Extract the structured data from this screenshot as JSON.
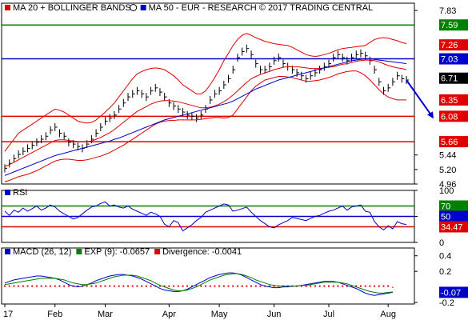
{
  "chart_data": [
    {
      "type": "line",
      "panel": "price",
      "title": "",
      "legend": [
        {
          "label": "MA 20 + BOLLINGER BANDS",
          "color": "#e00000",
          "icon": "info-icon"
        },
        {
          "label": "MA 50 - EUR - RESEARCH © 2017 TRADING CENTRAL",
          "color": "#0000cc"
        }
      ],
      "ylim": [
        4.96,
        7.95
      ],
      "yticks": [
        "7.83",
        "5.44",
        "5.20",
        "4.96"
      ],
      "levels": [
        {
          "value": 7.59,
          "label": "7.59",
          "color": "#008000"
        },
        {
          "value": 7.26,
          "label": "7.26",
          "color": "#e00000"
        },
        {
          "value": 7.03,
          "label": "7.03",
          "color": "#0000cc"
        },
        {
          "value": 6.71,
          "label": "6.71",
          "color": "#000000"
        },
        {
          "value": 6.35,
          "label": "6.35",
          "color": "#e00000"
        },
        {
          "value": 6.08,
          "label": "6.08",
          "color": "#e00000"
        },
        {
          "value": 5.66,
          "label": "5.66",
          "color": "#e00000"
        }
      ],
      "hlines": [
        {
          "value": 7.59,
          "color": "#008000"
        },
        {
          "value": 7.03,
          "color": "#0000cc"
        },
        {
          "value": 6.08,
          "color": "#e00000"
        },
        {
          "value": 5.66,
          "color": "#e00000"
        }
      ],
      "series": [
        {
          "key": "price",
          "color": "#000000",
          "values": [
            5.22,
            5.3,
            5.38,
            5.45,
            5.5,
            5.55,
            5.6,
            5.65,
            5.7,
            5.75,
            5.85,
            5.9,
            5.8,
            5.75,
            5.65,
            5.62,
            5.58,
            5.55,
            5.62,
            5.7,
            5.8,
            5.9,
            6,
            6.05,
            6.1,
            6.2,
            6.3,
            6.4,
            6.45,
            6.5,
            6.45,
            6.4,
            6.5,
            6.55,
            6.48,
            6.4,
            6.3,
            6.25,
            6.2,
            6.15,
            6.1,
            6.08,
            6.05,
            6.1,
            6.2,
            6.35,
            6.45,
            6.5,
            6.6,
            6.7,
            6.85,
            7.05,
            7.15,
            7.2,
            7.1,
            6.95,
            6.85,
            6.85,
            6.9,
            7,
            7.05,
            6.95,
            6.9,
            6.85,
            6.8,
            6.75,
            6.7,
            6.75,
            6.8,
            6.85,
            6.9,
            6.95,
            7.05,
            7.1,
            7.05,
            7,
            7.05,
            7.1,
            7.12,
            7.08,
            7,
            6.85,
            6.65,
            6.5,
            6.55,
            6.65,
            6.75,
            6.7,
            6.68
          ]
        },
        {
          "key": "ma20",
          "color": "#e00000",
          "values": [
            5.25,
            5.28,
            5.32,
            5.36,
            5.4,
            5.44,
            5.48,
            5.52,
            5.56,
            5.6,
            5.64,
            5.68,
            5.69,
            5.69,
            5.68,
            5.67,
            5.66,
            5.66,
            5.66,
            5.67,
            5.7,
            5.73,
            5.77,
            5.81,
            5.86,
            5.92,
            5.98,
            6.04,
            6.1,
            6.16,
            6.2,
            6.24,
            6.28,
            6.31,
            6.33,
            6.34,
            6.34,
            6.33,
            6.32,
            6.3,
            6.28,
            6.26,
            6.24,
            6.22,
            6.22,
            6.23,
            6.25,
            6.28,
            6.32,
            6.37,
            6.43,
            6.5,
            6.57,
            6.64,
            6.7,
            6.74,
            6.77,
            6.8,
            6.82,
            6.85,
            6.87,
            6.89,
            6.9,
            6.9,
            6.9,
            6.89,
            6.88,
            6.87,
            6.87,
            6.87,
            6.88,
            6.89,
            6.9,
            6.92,
            6.94,
            6.95,
            6.97,
            6.99,
            7,
            7.01,
            7.01,
            7,
            6.98,
            6.95,
            6.92,
            6.9,
            6.88,
            6.87,
            6.85
          ]
        },
        {
          "key": "bb_upper",
          "color": "#e00000",
          "values": [
            5.5,
            5.6,
            5.7,
            5.8,
            5.85,
            5.9,
            5.95,
            6,
            6.05,
            6.1,
            6.15,
            6.2,
            6.18,
            6.15,
            6.1,
            6.05,
            6,
            5.98,
            5.97,
            5.98,
            6.02,
            6.08,
            6.15,
            6.22,
            6.3,
            6.4,
            6.5,
            6.6,
            6.7,
            6.78,
            6.82,
            6.85,
            6.87,
            6.88,
            6.87,
            6.85,
            6.8,
            6.75,
            6.68,
            6.6,
            6.55,
            6.5,
            6.45,
            6.45,
            6.5,
            6.6,
            6.72,
            6.85,
            7,
            7.12,
            7.25,
            7.35,
            7.42,
            7.45,
            7.42,
            7.38,
            7.35,
            7.32,
            7.3,
            7.28,
            7.27,
            7.26,
            7.25,
            7.22,
            7.18,
            7.14,
            7.1,
            7.08,
            7.07,
            7.08,
            7.1,
            7.12,
            7.15,
            7.18,
            7.2,
            7.21,
            7.22,
            7.23,
            7.24,
            7.25,
            7.3,
            7.35,
            7.37,
            7.38,
            7.37,
            7.35,
            7.33,
            7.3,
            7.28
          ]
        },
        {
          "key": "bb_lower",
          "color": "#e00000",
          "values": [
            5,
            5.02,
            5.05,
            5.08,
            5.1,
            5.12,
            5.15,
            5.18,
            5.22,
            5.26,
            5.3,
            5.34,
            5.36,
            5.37,
            5.37,
            5.36,
            5.35,
            5.35,
            5.36,
            5.38,
            5.4,
            5.42,
            5.45,
            5.48,
            5.52,
            5.56,
            5.6,
            5.65,
            5.7,
            5.75,
            5.8,
            5.85,
            5.9,
            5.95,
            5.98,
            6,
            6.01,
            6.01,
            6.02,
            6.02,
            6.02,
            6.02,
            6.02,
            6.03,
            6.04,
            6.05,
            6.06,
            6.06,
            6.05,
            6.06,
            6.1,
            6.2,
            6.3,
            6.4,
            6.5,
            6.58,
            6.63,
            6.68,
            6.7,
            6.72,
            6.74,
            6.74,
            6.73,
            6.72,
            6.7,
            6.68,
            6.66,
            6.66,
            6.67,
            6.68,
            6.7,
            6.72,
            6.75,
            6.78,
            6.8,
            6.82,
            6.83,
            6.83,
            6.8,
            6.75,
            6.68,
            6.6,
            6.52,
            6.45,
            6.4,
            6.37,
            6.35,
            6.35,
            6.35
          ]
        },
        {
          "key": "ma50",
          "color": "#0000cc",
          "values": [
            5.1,
            5.13,
            5.16,
            5.19,
            5.22,
            5.25,
            5.28,
            5.31,
            5.34,
            5.37,
            5.4,
            5.43,
            5.45,
            5.47,
            5.49,
            5.51,
            5.53,
            5.55,
            5.57,
            5.59,
            5.61,
            5.63,
            5.65,
            5.67,
            5.7,
            5.72,
            5.75,
            5.78,
            5.81,
            5.84,
            5.87,
            5.9,
            5.93,
            5.96,
            5.99,
            6.02,
            6.04,
            6.06,
            6.08,
            6.1,
            6.12,
            6.14,
            6.16,
            6.18,
            6.2,
            6.22,
            6.24,
            6.26,
            6.28,
            6.3,
            6.33,
            6.37,
            6.41,
            6.45,
            6.49,
            6.53,
            6.56,
            6.59,
            6.62,
            6.65,
            6.68,
            6.7,
            6.72,
            6.74,
            6.76,
            6.78,
            6.8,
            6.82,
            6.84,
            6.86,
            6.88,
            6.9,
            6.92,
            6.94,
            6.96,
            6.98,
            7,
            7.01,
            7.02,
            7.03,
            7.03,
            7.02,
            7.01,
            7,
            6.99,
            6.98,
            6.97,
            6.96,
            6.95
          ]
        }
      ],
      "arrow": {
        "from": 6.68,
        "to": 6.08,
        "color": "#0000cc"
      }
    },
    {
      "type": "line",
      "panel": "rsi",
      "legend": [
        {
          "label": "RSI",
          "color": "#0000cc"
        }
      ],
      "ylim": [
        0,
        100
      ],
      "yticks": [
        "100",
        "50",
        "0"
      ],
      "levels": [
        {
          "value": 70,
          "label": "70",
          "color": "#008000"
        },
        {
          "value": 50,
          "label": "50",
          "color": "#0000cc"
        },
        {
          "value": 30,
          "label": "34.47",
          "color": "#e00000"
        }
      ],
      "hlines": [
        {
          "value": 70,
          "color": "#008000"
        },
        {
          "value": 50,
          "color": "#0000cc"
        },
        {
          "value": 30,
          "color": "#e00000"
        }
      ],
      "series": [
        {
          "key": "rsi",
          "color": "#0000cc",
          "values": [
            60,
            52,
            62,
            58,
            66,
            60,
            65,
            70,
            62,
            66,
            72,
            68,
            60,
            55,
            50,
            45,
            48,
            55,
            62,
            68,
            70,
            75,
            78,
            70,
            72,
            68,
            66,
            70,
            64,
            60,
            56,
            52,
            58,
            55,
            50,
            35,
            30,
            42,
            38,
            22,
            28,
            34,
            42,
            48,
            58,
            62,
            66,
            70,
            74,
            72,
            60,
            62,
            65,
            68,
            58,
            50,
            42,
            36,
            30,
            28,
            34,
            38,
            42,
            48,
            46,
            44,
            42,
            46,
            50,
            52,
            56,
            60,
            62,
            66,
            70,
            62,
            68,
            70,
            72,
            60,
            58,
            40,
            30,
            24,
            32,
            26,
            40,
            36,
            34.47
          ]
        }
      ]
    },
    {
      "type": "line",
      "panel": "macd",
      "legend": [
        {
          "label": "MACD (26, 12)",
          "color": "#0000cc"
        },
        {
          "label": "EXP (9): -0.0657",
          "color": "#008000"
        },
        {
          "label": "Divergence: -0.0041",
          "color": "#e00000"
        }
      ],
      "ylim": [
        -0.22,
        0.5
      ],
      "yticks": [
        "0.4",
        "0.2",
        "-0.2"
      ],
      "levels": [
        {
          "value": -0.07,
          "label": "-0.07",
          "color": "#0000cc"
        }
      ],
      "series": [
        {
          "key": "macd",
          "color": "#0000cc",
          "values": [
            0.05,
            0.07,
            0.09,
            0.1,
            0.11,
            0.12,
            0.13,
            0.14,
            0.14,
            0.13,
            0.12,
            0.11,
            0.09,
            0.06,
            0.03,
            0.01,
            0,
            0.01,
            0.03,
            0.05,
            0.08,
            0.1,
            0.12,
            0.14,
            0.15,
            0.16,
            0.16,
            0.15,
            0.14,
            0.12,
            0.1,
            0.07,
            0.04,
            0.01,
            -0.02,
            -0.04,
            -0.05,
            -0.06,
            -0.06,
            -0.05,
            -0.03,
            0,
            0.03,
            0.06,
            0.09,
            0.12,
            0.14,
            0.16,
            0.17,
            0.18,
            0.18,
            0.17,
            0.15,
            0.12,
            0.09,
            0.06,
            0.03,
            0.01,
            0,
            -0.01,
            -0.01,
            0,
            0,
            0.01,
            0.01,
            0.02,
            0.03,
            0.04,
            0.05,
            0.06,
            0.07,
            0.07,
            0.07,
            0.06,
            0.04,
            0.02,
            0,
            -0.02,
            -0.05,
            -0.08,
            -0.1,
            -0.11,
            -0.1,
            -0.09,
            -0.08,
            -0.07
          ]
        },
        {
          "key": "exp9",
          "color": "#008000",
          "values": [
            0.03,
            0.04,
            0.05,
            0.06,
            0.07,
            0.08,
            0.09,
            0.1,
            0.11,
            0.11,
            0.11,
            0.11,
            0.1,
            0.09,
            0.07,
            0.05,
            0.04,
            0.03,
            0.03,
            0.04,
            0.05,
            0.07,
            0.09,
            0.11,
            0.13,
            0.14,
            0.15,
            0.15,
            0.15,
            0.14,
            0.12,
            0.1,
            0.08,
            0.05,
            0.02,
            0,
            -0.02,
            -0.04,
            -0.05,
            -0.05,
            -0.04,
            -0.02,
            0,
            0.03,
            0.06,
            0.09,
            0.11,
            0.13,
            0.15,
            0.16,
            0.17,
            0.17,
            0.16,
            0.14,
            0.12,
            0.09,
            0.07,
            0.05,
            0.03,
            0.02,
            0.01,
            0.01,
            0.01,
            0.01,
            0.01,
            0.02,
            0.02,
            0.03,
            0.04,
            0.05,
            0.06,
            0.06,
            0.06,
            0.06,
            0.05,
            0.04,
            0.02,
            0,
            -0.02,
            -0.04,
            -0.06,
            -0.07,
            -0.08,
            -0.08,
            -0.07,
            -0.0657
          ]
        },
        {
          "key": "divergence",
          "color": "#e00000",
          "values": [
            0.02,
            0.02,
            0.02,
            0.02,
            0.02,
            0.02,
            0.02,
            0.02,
            0.02,
            0.02,
            0.02,
            0.02,
            0.02,
            0.02,
            0.02,
            0.02,
            0.02,
            0.02,
            0.02,
            0.02,
            0.02,
            0.02,
            0.02,
            0.02,
            0.02,
            0.02,
            0.02,
            0.02,
            0.02,
            0.02,
            0.02,
            0.02,
            0.02,
            0.02,
            0.02,
            0.02,
            0.02,
            0.02,
            0.02,
            0.02,
            0.02,
            0.02,
            0.02,
            0.02,
            0.02,
            0.02,
            0.02,
            0.02,
            0.02,
            0.02,
            0.02,
            0.02,
            0.02,
            0.02,
            0.02,
            0.02,
            0.02,
            0.02,
            0.02,
            0.02,
            0.02,
            0.02,
            0.02,
            0.02,
            0.02,
            0.02,
            0.02,
            0.02,
            0.02,
            0.02,
            0.02,
            0.02,
            0.02,
            0.02,
            0.02,
            0.02,
            0.02,
            0.02,
            0.02,
            0.02,
            0.02,
            0.02,
            0.02,
            0.02,
            0.02,
            -0.0041
          ]
        }
      ]
    }
  ],
  "x_axis": {
    "labels": [
      "17",
      "Feb",
      "Mar",
      "Apr",
      "May",
      "Jun",
      "Jul",
      "Aug"
    ],
    "positions": [
      0,
      11,
      22,
      36,
      47,
      59,
      71,
      84
    ]
  }
}
